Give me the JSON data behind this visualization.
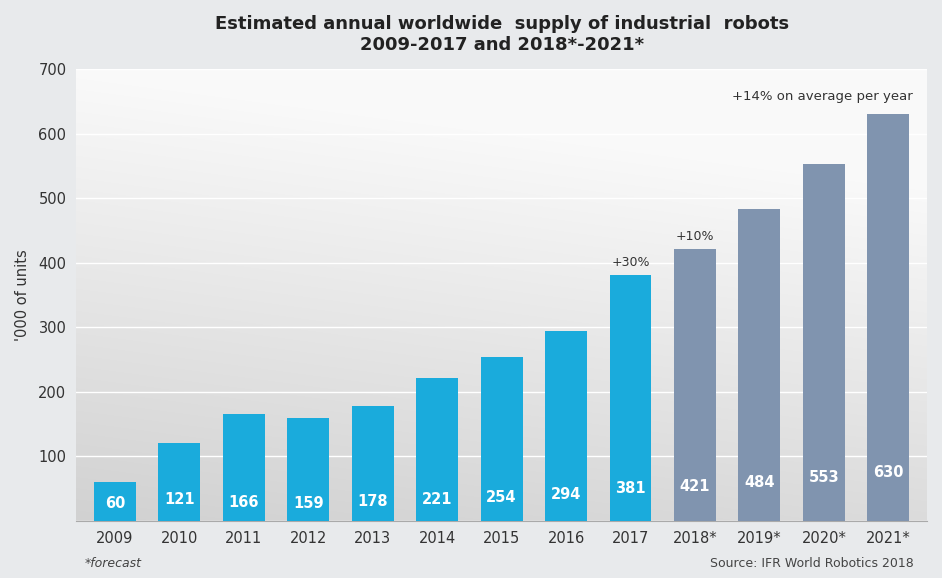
{
  "title_line1": "Estimated annual worldwide  supply of industrial  robots",
  "title_line2": "2009-2017 and 2018*-2021*",
  "ylabel": "'000 of units",
  "categories": [
    "2009",
    "2010",
    "2011",
    "2012",
    "2013",
    "2014",
    "2015",
    "2016",
    "2017",
    "2018*",
    "2019*",
    "2020*",
    "2021*"
  ],
  "values": [
    60,
    121,
    166,
    159,
    178,
    221,
    254,
    294,
    381,
    421,
    484,
    553,
    630
  ],
  "actual_color": "#1AABDC",
  "forecast_color": "#8094AF",
  "actual_count": 9,
  "forecast_count": 4,
  "ylim": [
    0,
    700
  ],
  "yticks": [
    0,
    100,
    200,
    300,
    400,
    500,
    600,
    700
  ],
  "annotation_2017": "+30%",
  "annotation_2018": "+10%",
  "top_annotation": "+14% on average per year",
  "footer_left": "*forecast",
  "footer_right": "Source: IFR World Robotics 2018",
  "title_fontsize": 13,
  "label_fontsize": 10.5,
  "axis_fontsize": 10.5,
  "footer_fontsize": 9,
  "annotation_fontsize": 9
}
